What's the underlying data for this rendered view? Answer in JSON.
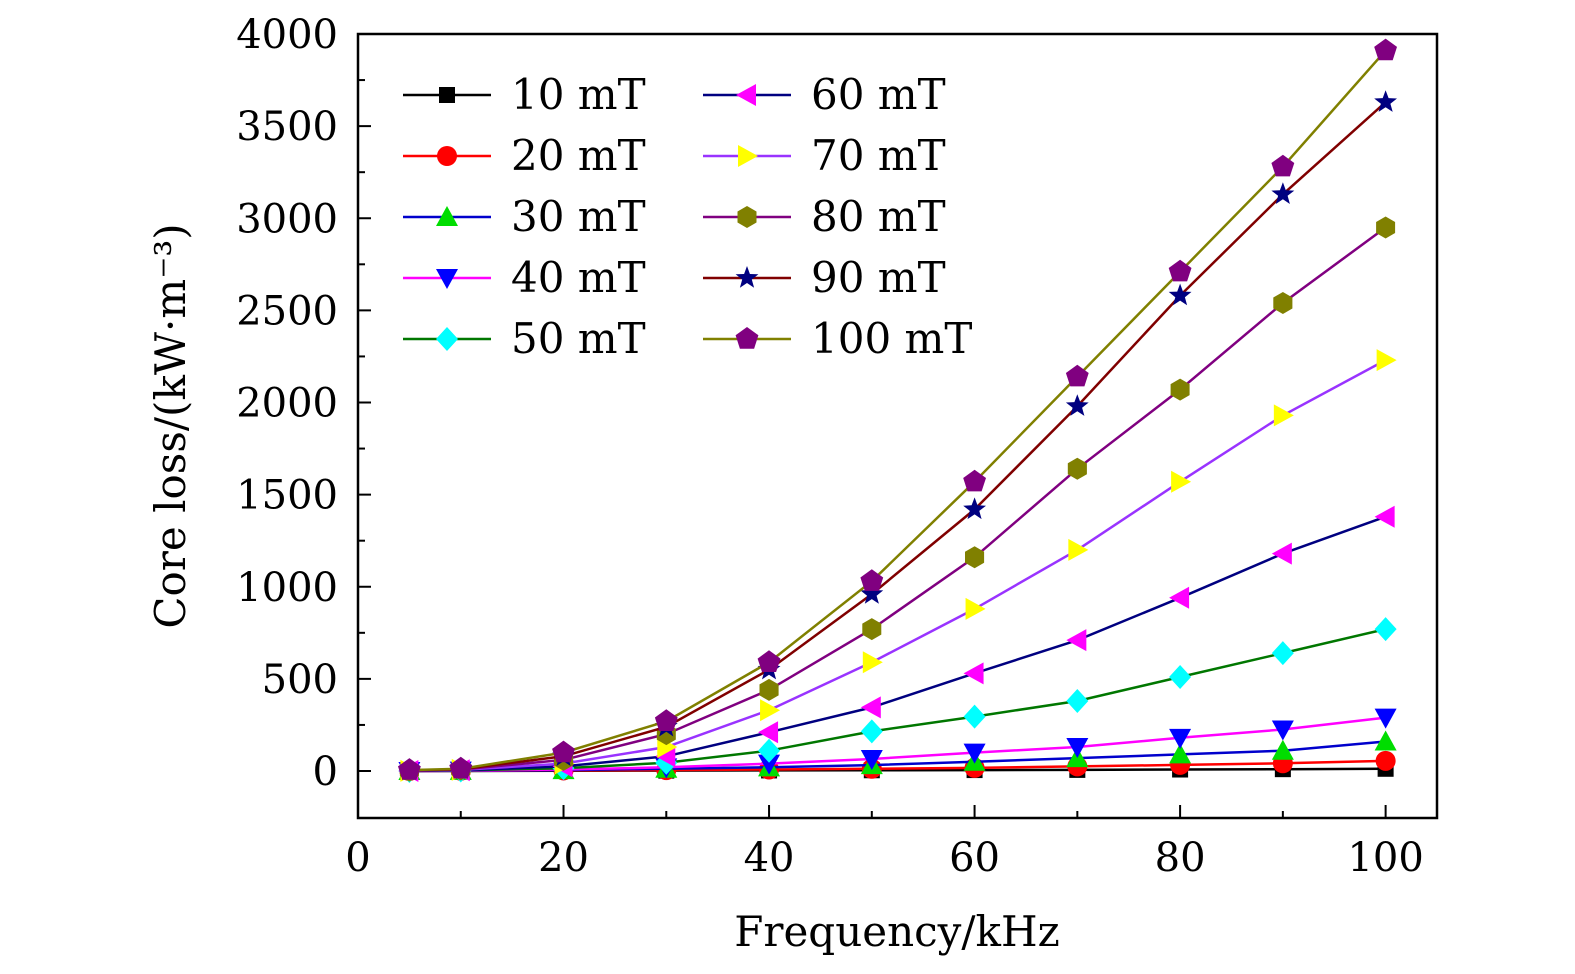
{
  "chart_data": {
    "type": "line",
    "xlabel": "Frequency/kHz",
    "ylabel": "Core loss/(kW·m⁻³)",
    "xlim": [
      0,
      105
    ],
    "ylim": [
      -250,
      4000
    ],
    "xticks": [
      0,
      20,
      40,
      60,
      80,
      100
    ],
    "xtick_labels": [
      "0",
      "20",
      "40",
      "60",
      "80",
      "100"
    ],
    "yticks": [
      0,
      500,
      1000,
      1500,
      2000,
      2500,
      3000,
      3500,
      4000
    ],
    "ytick_labels": [
      "0",
      "500",
      "1000",
      "1500",
      "2000",
      "2500",
      "3000",
      "3500",
      "4000"
    ],
    "grid": false,
    "legend_position": "top-left",
    "x": [
      5,
      10,
      20,
      30,
      40,
      50,
      60,
      70,
      80,
      90,
      100
    ],
    "series": [
      {
        "name": "10 mT",
        "color": "#000000",
        "line_color": "#000000",
        "marker": "square",
        "values": [
          0,
          0,
          1,
          2,
          3,
          4,
          5,
          6,
          8,
          10,
          12
        ]
      },
      {
        "name": "20 mT",
        "color": "#ff0000",
        "line_color": "#ff0000",
        "marker": "circle",
        "values": [
          0,
          1,
          3,
          5,
          8,
          12,
          17,
          25,
          33,
          42,
          55
        ]
      },
      {
        "name": "30 mT",
        "color": "#00dd00",
        "line_color": "#0000cc",
        "marker": "triangle-up",
        "values": [
          0,
          1,
          5,
          12,
          20,
          32,
          50,
          70,
          90,
          110,
          160
        ]
      },
      {
        "name": "40 mT",
        "color": "#0000ff",
        "line_color": "#ff00ff",
        "marker": "triangle-down",
        "values": [
          0,
          2,
          8,
          20,
          40,
          65,
          100,
          130,
          180,
          225,
          290
        ]
      },
      {
        "name": "50 mT",
        "color": "#00ffff",
        "line_color": "#007700",
        "marker": "diamond",
        "values": [
          0,
          3,
          15,
          45,
          110,
          215,
          295,
          380,
          510,
          640,
          770
        ]
      },
      {
        "name": "60 mT",
        "color": "#ff00ff",
        "line_color": "#000080",
        "marker": "triangle-left",
        "values": [
          0,
          4,
          25,
          80,
          210,
          345,
          530,
          710,
          940,
          1180,
          1380
        ]
      },
      {
        "name": "70 mT",
        "color": "#ffff00",
        "line_color": "#9933ff",
        "marker": "triangle-right",
        "values": [
          1,
          6,
          40,
          130,
          330,
          590,
          880,
          1200,
          1570,
          1930,
          2230
        ]
      },
      {
        "name": "80 mT",
        "color": "#808000",
        "line_color": "#800080",
        "marker": "hexagon",
        "values": [
          2,
          8,
          60,
          200,
          440,
          770,
          1160,
          1640,
          2070,
          2540,
          2950
        ]
      },
      {
        "name": "90 mT",
        "color": "#000080",
        "line_color": "#800000",
        "marker": "star",
        "values": [
          3,
          10,
          80,
          240,
          550,
          960,
          1420,
          1980,
          2580,
          3130,
          3630
        ]
      },
      {
        "name": "100 mT",
        "color": "#800080",
        "line_color": "#808000",
        "marker": "pentagon",
        "values": [
          5,
          12,
          100,
          270,
          590,
          1030,
          1570,
          2140,
          2710,
          3280,
          3910
        ]
      }
    ]
  }
}
